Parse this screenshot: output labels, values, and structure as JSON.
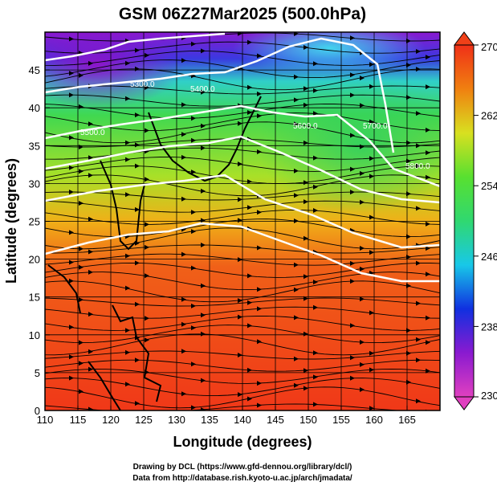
{
  "chart_data": {
    "type": "heatmap",
    "title": "GSM 06Z27Mar2025 (500.0hPa)",
    "xlabel": "Longitude (degrees)",
    "ylabel": "Latitude  (degrees)",
    "xlim": [
      110,
      170
    ],
    "ylim": [
      0,
      50
    ],
    "x_ticks": [
      110,
      115,
      120,
      125,
      130,
      135,
      140,
      145,
      150,
      155,
      160,
      165
    ],
    "y_ticks": [
      0,
      5,
      10,
      15,
      20,
      25,
      30,
      35,
      40,
      45
    ],
    "colorbar": {
      "min": 230,
      "max": 270,
      "ticks": [
        230,
        238,
        246,
        254,
        262,
        270
      ],
      "colors": [
        "#e040c0",
        "#8a1ad0",
        "#1030e0",
        "#18c8e8",
        "#30d870",
        "#58e030",
        "#d8e020",
        "#f08010",
        "#f03018"
      ]
    },
    "contours": [
      {
        "label": "5300.0"
      },
      {
        "label": "5400.0"
      },
      {
        "label": "5500.0"
      },
      {
        "label": "5600.0"
      },
      {
        "label": "5700.0"
      },
      {
        "label": "5800.0"
      }
    ],
    "grid": true,
    "credit_lines": [
      "Drawing by DCL (https://www.gfd-dennou.org/library/dcl/)",
      "Data from http://database.rish.kyoto-u.ac.jp/arch/jmadata/"
    ]
  }
}
